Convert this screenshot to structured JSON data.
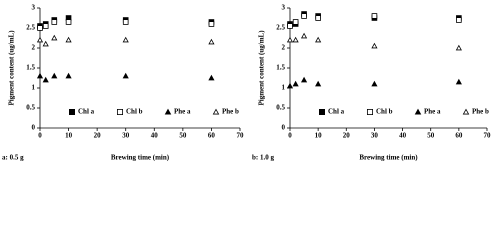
{
  "chart_data": [
    {
      "type": "scatter",
      "label": "a: 0.5 g",
      "xlabel": "Brewing time (min)",
      "ylabel": "Pigment content (ug/mL)",
      "x": [
        0,
        2,
        5,
        10,
        30,
        60
      ],
      "xlim": [
        0,
        70
      ],
      "xticks": [
        0,
        10,
        20,
        30,
        40,
        50,
        60,
        70
      ],
      "ylim": [
        0,
        3
      ],
      "yticks": [
        0,
        0.5,
        1,
        1.5,
        2,
        2.5,
        3
      ],
      "series": [
        {
          "name": "Chl a",
          "color": "#000000",
          "marker": "square",
          "filled": true,
          "values": [
            2.55,
            2.6,
            2.7,
            2.75,
            2.7,
            2.65
          ]
        },
        {
          "name": "Chl b",
          "color": "#000000",
          "marker": "square",
          "filled": false,
          "values": [
            2.5,
            2.55,
            2.65,
            2.65,
            2.65,
            2.6
          ]
        },
        {
          "name": "Phe a",
          "color": "#000000",
          "marker": "triangle",
          "filled": true,
          "values": [
            1.3,
            1.2,
            1.3,
            1.3,
            1.3,
            1.25
          ]
        },
        {
          "name": "Phe b",
          "color": "#000000",
          "marker": "triangle",
          "filled": false,
          "values": [
            2.2,
            2.1,
            2.25,
            2.2,
            2.2,
            2.15
          ]
        }
      ]
    },
    {
      "type": "scatter",
      "label": "b: 1.0 g",
      "xlabel": "Brewing time (min)",
      "ylabel": "Pigment content (ug/mL)",
      "x": [
        0,
        2,
        5,
        10,
        30,
        60
      ],
      "xlim": [
        0,
        70
      ],
      "xticks": [
        0,
        10,
        20,
        30,
        40,
        50,
        60,
        70
      ],
      "ylim": [
        0,
        3
      ],
      "yticks": [
        0,
        0.5,
        1,
        1.5,
        2,
        2.5,
        3
      ],
      "series": [
        {
          "name": "Chl a",
          "color": "#000000",
          "marker": "square",
          "filled": true,
          "values": [
            2.6,
            2.6,
            2.85,
            2.8,
            2.75,
            2.75
          ]
        },
        {
          "name": "Chl b",
          "color": "#000000",
          "marker": "square",
          "filled": false,
          "values": [
            2.55,
            2.65,
            2.8,
            2.75,
            2.8,
            2.7
          ]
        },
        {
          "name": "Phe a",
          "color": "#000000",
          "marker": "triangle",
          "filled": true,
          "values": [
            1.05,
            1.1,
            1.2,
            1.1,
            1.1,
            1.15
          ]
        },
        {
          "name": "Phe b",
          "color": "#000000",
          "marker": "triangle",
          "filled": false,
          "values": [
            2.2,
            2.2,
            2.3,
            2.2,
            2.05,
            2.0
          ]
        }
      ]
    }
  ]
}
